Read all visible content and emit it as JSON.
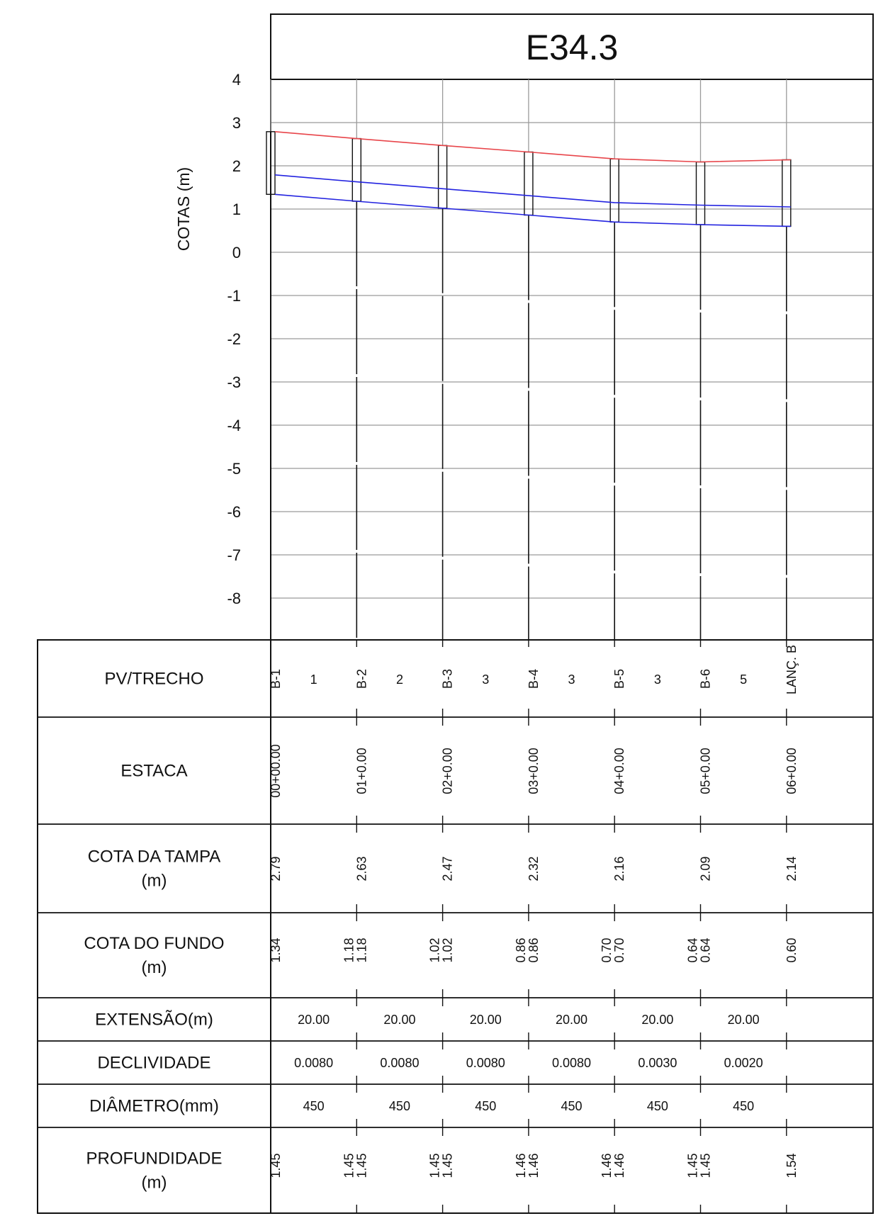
{
  "title": "E34.3",
  "chart_data": {
    "type": "line",
    "ylabel": "COTAS (m)",
    "yticks": [
      4,
      3,
      2,
      1,
      0,
      -1,
      -2,
      -3,
      -4,
      -5,
      -6,
      -7,
      -8
    ],
    "ylim": [
      -9,
      5
    ],
    "stations": [
      "B-1",
      "B-2",
      "B-3",
      "B-4",
      "B-5",
      "B-6",
      "LANÇ. B"
    ],
    "station_distance_m": [
      0,
      20,
      40,
      60,
      80,
      100,
      120
    ],
    "series": [
      {
        "values": [
          2.79,
          2.63,
          2.47,
          2.32,
          2.16,
          2.09,
          2.14
        ],
        "color": "#e8454a"
      },
      {
        "values": [
          1.79,
          1.63,
          1.47,
          1.31,
          1.15,
          1.09,
          1.05
        ],
        "color": "#2323e0"
      },
      {
        "values": [
          1.34,
          1.18,
          1.02,
          0.86,
          0.7,
          0.64,
          0.6
        ],
        "color": "#2323e0"
      }
    ]
  },
  "table": {
    "rows": {
      "pv": "PV/TRECHO",
      "estaca": "ESTACA",
      "tampa": [
        "COTA DA TAMPA",
        "(m)"
      ],
      "fundo": [
        "COTA DO FUNDO",
        "(m)"
      ],
      "extensao": "EXTENSÃO(m)",
      "declividade": "DECLIVIDADE",
      "diametro": "DIÂMETRO(mm)",
      "profundidade": [
        "PROFUNDIDADE",
        "(m)"
      ]
    },
    "pv_names": [
      "B-1",
      "B-2",
      "B-3",
      "B-4",
      "B-5",
      "B-6",
      "LANÇ. B"
    ],
    "trecho_numbers": [
      "1",
      "2",
      "3",
      "3",
      "3",
      "5"
    ],
    "estacas": [
      "00+00.00",
      "01+0.00",
      "02+0.00",
      "03+0.00",
      "04+0.00",
      "05+0.00",
      "06+0.00"
    ],
    "cota_tampa": [
      "2.79",
      "2.63",
      "2.47",
      "2.32",
      "2.16",
      "2.09",
      "2.14"
    ],
    "cota_fundo": [
      [
        "1.34"
      ],
      [
        "1.18",
        "1.18"
      ],
      [
        "1.02",
        "1.02"
      ],
      [
        "0.86",
        "0.86"
      ],
      [
        "0.70",
        "0.70"
      ],
      [
        "0.64",
        "0.64"
      ],
      [
        "0.60"
      ]
    ],
    "extensao": [
      "20.00",
      "20.00",
      "20.00",
      "20.00",
      "20.00",
      "20.00"
    ],
    "declividade": [
      "0.0080",
      "0.0080",
      "0.0080",
      "0.0080",
      "0.0030",
      "0.0020"
    ],
    "diametro": [
      "450",
      "450",
      "450",
      "450",
      "450",
      "450"
    ],
    "profundidade": [
      [
        "1.45"
      ],
      [
        "1.45",
        "1.45"
      ],
      [
        "1.45",
        "1.45"
      ],
      [
        "1.46",
        "1.46"
      ],
      [
        "1.46",
        "1.46"
      ],
      [
        "1.45",
        "1.45"
      ],
      [
        "1.54"
      ]
    ]
  }
}
